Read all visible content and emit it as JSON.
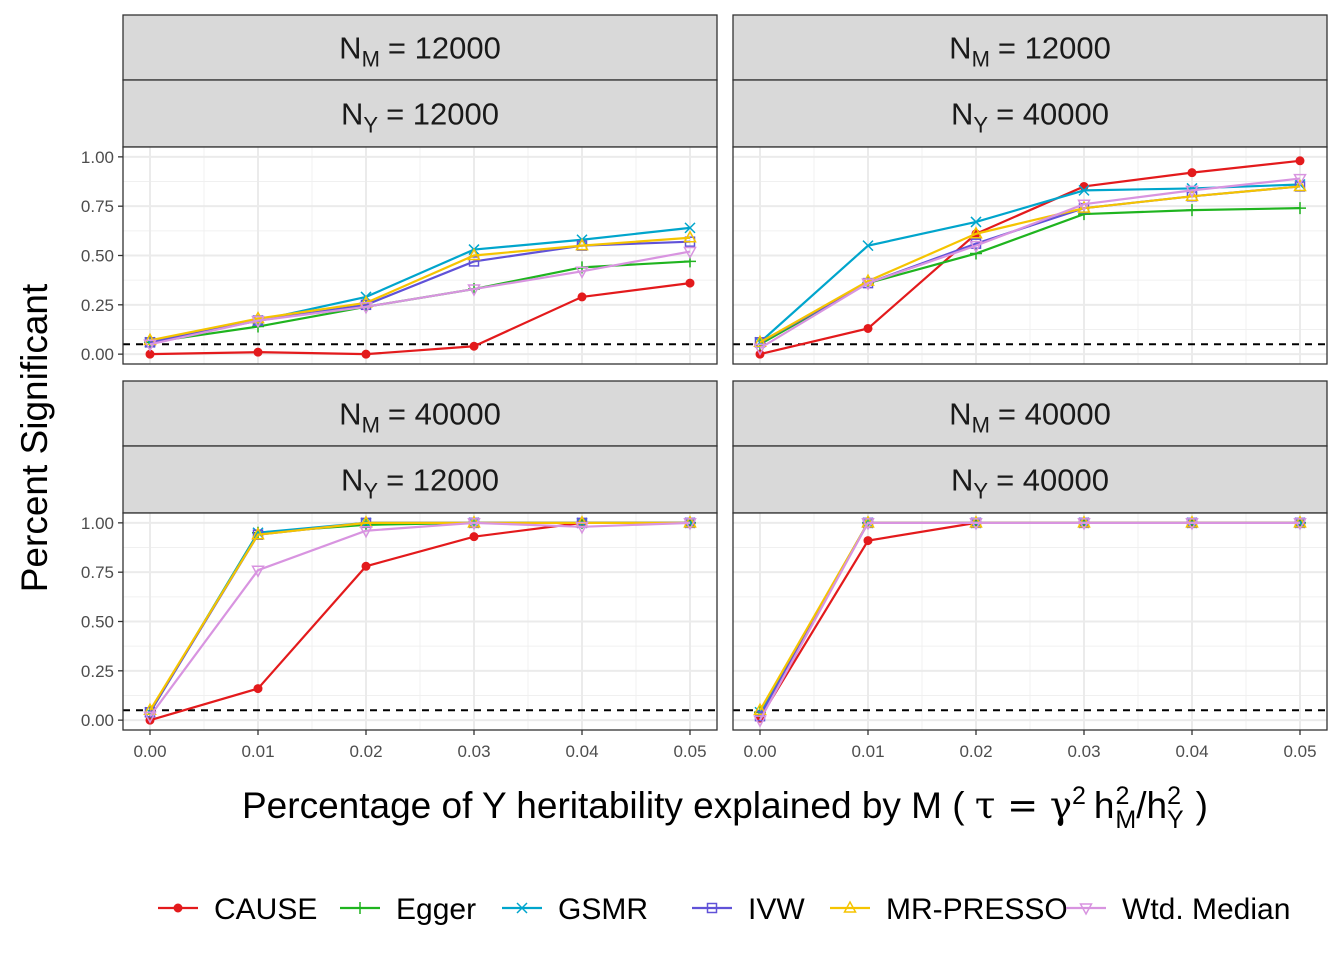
{
  "chart_data": {
    "type": "line",
    "ylabel": "Percent Significant",
    "xlabel_prefix": "Percentage of Y heritability explained by M (",
    "xlabel_formula": {
      "tau": "τ",
      "eq": "=",
      "gamma": "γ",
      "sup2": "2",
      "h": "h",
      "subM": "M",
      "slash": "/",
      "subY": "Y",
      "close": ")"
    },
    "x": [
      0.0,
      0.01,
      0.02,
      0.03,
      0.04,
      0.05
    ],
    "x_tick_labels": [
      "0.00",
      "0.01",
      "0.02",
      "0.03",
      "0.04",
      "0.05"
    ],
    "xlim": [
      -0.0025,
      0.0525
    ],
    "ylim": [
      -0.05,
      1.05
    ],
    "y_ticks": [
      0,
      0.25,
      0.5,
      0.75,
      1.0
    ],
    "y_tick_labels": [
      "0.00",
      "0.25",
      "0.50",
      "0.75",
      "1.00"
    ],
    "reference_line_y": 0.05,
    "grid": true,
    "legend_position": "bottom",
    "series_styles": [
      {
        "name": "CAUSE",
        "color": "#E31A1C",
        "shape": "circle"
      },
      {
        "name": "Egger",
        "color": "#1FB41F",
        "shape": "plus"
      },
      {
        "name": "GSMR",
        "color": "#00A5CC",
        "shape": "cross"
      },
      {
        "name": "IVW",
        "color": "#6052D8",
        "shape": "square"
      },
      {
        "name": "MR-PRESSO",
        "color": "#F5C400",
        "shape": "triangle"
      },
      {
        "name": "Wtd. Median",
        "color": "#D894E0",
        "shape": "triangle-down"
      }
    ],
    "panels": [
      {
        "strip_top": {
          "label": "N",
          "sub": "M",
          "value": "= 12000"
        },
        "strip_bottom": {
          "label": "N",
          "sub": "Y",
          "value": "= 12000"
        },
        "series": [
          {
            "name": "CAUSE",
            "values": [
              0.0,
              0.01,
              0.0,
              0.04,
              0.29,
              0.36
            ]
          },
          {
            "name": "Egger",
            "values": [
              0.06,
              0.14,
              0.24,
              0.33,
              0.44,
              0.47
            ]
          },
          {
            "name": "GSMR",
            "values": [
              0.06,
              0.17,
              0.29,
              0.53,
              0.58,
              0.64
            ]
          },
          {
            "name": "IVW",
            "values": [
              0.06,
              0.17,
              0.25,
              0.47,
              0.55,
              0.57
            ]
          },
          {
            "name": "MR-PRESSO",
            "values": [
              0.07,
              0.18,
              0.26,
              0.5,
              0.55,
              0.59
            ]
          },
          {
            "name": "Wtd. Median",
            "values": [
              0.05,
              0.17,
              0.24,
              0.33,
              0.42,
              0.52
            ]
          }
        ]
      },
      {
        "strip_top": {
          "label": "N",
          "sub": "M",
          "value": "= 12000"
        },
        "strip_bottom": {
          "label": "N",
          "sub": "Y",
          "value": "= 40000"
        },
        "series": [
          {
            "name": "CAUSE",
            "values": [
              0.0,
              0.13,
              0.61,
              0.85,
              0.92,
              0.98
            ]
          },
          {
            "name": "Egger",
            "values": [
              0.05,
              0.36,
              0.51,
              0.71,
              0.73,
              0.74
            ]
          },
          {
            "name": "GSMR",
            "values": [
              0.06,
              0.55,
              0.67,
              0.83,
              0.84,
              0.86
            ]
          },
          {
            "name": "IVW",
            "values": [
              0.06,
              0.36,
              0.56,
              0.74,
              0.8,
              0.85
            ]
          },
          {
            "name": "MR-PRESSO",
            "values": [
              0.06,
              0.37,
              0.61,
              0.74,
              0.8,
              0.85
            ]
          },
          {
            "name": "Wtd. Median",
            "values": [
              0.03,
              0.36,
              0.55,
              0.76,
              0.83,
              0.89
            ]
          }
        ]
      },
      {
        "strip_top": {
          "label": "N",
          "sub": "M",
          "value": "= 40000"
        },
        "strip_bottom": {
          "label": "N",
          "sub": "Y",
          "value": "= 12000"
        },
        "series": [
          {
            "name": "CAUSE",
            "values": [
              0.0,
              0.16,
              0.78,
              0.93,
              1.0,
              1.0
            ]
          },
          {
            "name": "Egger",
            "values": [
              0.04,
              0.95,
              0.99,
              1.0,
              1.0,
              1.0
            ]
          },
          {
            "name": "GSMR",
            "values": [
              0.04,
              0.95,
              1.0,
              1.0,
              1.0,
              1.0
            ]
          },
          {
            "name": "IVW",
            "values": [
              0.04,
              0.94,
              1.0,
              1.0,
              1.0,
              1.0
            ]
          },
          {
            "name": "MR-PRESSO",
            "values": [
              0.05,
              0.94,
              1.0,
              1.0,
              1.0,
              1.0
            ]
          },
          {
            "name": "Wtd. Median",
            "values": [
              0.02,
              0.76,
              0.96,
              1.0,
              0.98,
              1.0
            ]
          }
        ]
      },
      {
        "strip_top": {
          "label": "N",
          "sub": "M",
          "value": "= 40000"
        },
        "strip_bottom": {
          "label": "N",
          "sub": "Y",
          "value": "= 40000"
        },
        "series": [
          {
            "name": "CAUSE",
            "values": [
              0.01,
              0.91,
              1.0,
              1.0,
              1.0,
              1.0
            ]
          },
          {
            "name": "Egger",
            "values": [
              0.04,
              1.0,
              1.0,
              1.0,
              1.0,
              1.0
            ]
          },
          {
            "name": "GSMR",
            "values": [
              0.04,
              1.0,
              1.0,
              1.0,
              1.0,
              1.0
            ]
          },
          {
            "name": "IVW",
            "values": [
              0.02,
              1.0,
              1.0,
              1.0,
              1.0,
              1.0
            ]
          },
          {
            "name": "MR-PRESSO",
            "values": [
              0.05,
              1.0,
              1.0,
              1.0,
              1.0,
              1.0
            ]
          },
          {
            "name": "Wtd. Median",
            "values": [
              0.0,
              1.0,
              1.0,
              1.0,
              1.0,
              1.0
            ]
          }
        ]
      }
    ]
  }
}
